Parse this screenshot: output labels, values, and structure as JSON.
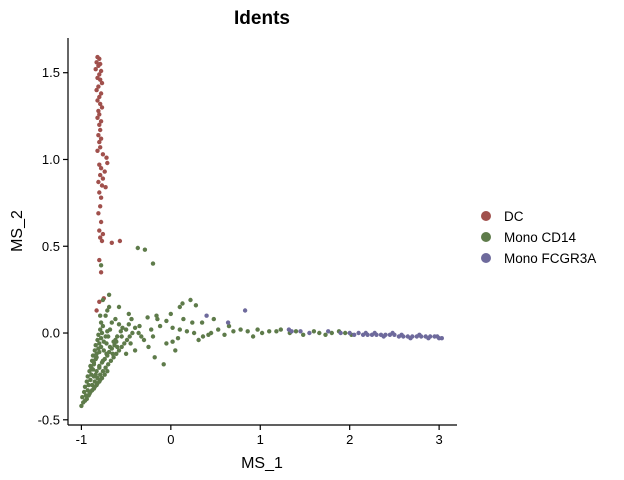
{
  "chart_data": {
    "type": "scatter",
    "title": "Idents",
    "xlabel": "MS_1",
    "ylabel": "MS_2",
    "xlim": [
      -1.15,
      3.2
    ],
    "ylim": [
      -0.53,
      1.7
    ],
    "xticks": [
      -1,
      0,
      1,
      2,
      3
    ],
    "xtick_labels": [
      "-1",
      "0",
      "1",
      "2",
      "3"
    ],
    "yticks": [
      -0.5,
      0.0,
      0.5,
      1.0,
      1.5
    ],
    "ytick_labels": [
      "-0.5",
      "0.0",
      "0.5",
      "1.0",
      "1.5"
    ],
    "grid": false,
    "legend_position": "right",
    "series": [
      {
        "name": "DC",
        "color": "#A0504C",
        "points": [
          [
            -0.82,
            1.59
          ],
          [
            -0.8,
            1.58
          ],
          [
            -0.83,
            1.56
          ],
          [
            -0.79,
            1.55
          ],
          [
            -0.81,
            1.54
          ],
          [
            -0.84,
            1.52
          ],
          [
            -0.78,
            1.51
          ],
          [
            -0.8,
            1.49
          ],
          [
            -0.82,
            1.47
          ],
          [
            -0.79,
            1.46
          ],
          [
            -0.77,
            1.44
          ],
          [
            -0.81,
            1.42
          ],
          [
            -0.83,
            1.4
          ],
          [
            -0.78,
            1.38
          ],
          [
            -0.8,
            1.36
          ],
          [
            -0.82,
            1.34
          ],
          [
            -0.79,
            1.32
          ],
          [
            -0.77,
            1.3
          ],
          [
            -0.81,
            1.28
          ],
          [
            -0.8,
            1.26
          ],
          [
            -0.82,
            1.24
          ],
          [
            -0.78,
            1.22
          ],
          [
            -0.8,
            1.2
          ],
          [
            -0.79,
            1.17
          ],
          [
            -0.81,
            1.14
          ],
          [
            -0.78,
            1.12
          ],
          [
            -0.8,
            1.1
          ],
          [
            -0.79,
            1.07
          ],
          [
            -0.82,
            1.05
          ],
          [
            -0.76,
            1.03
          ],
          [
            -0.72,
            1.01
          ],
          [
            -0.71,
            0.98
          ],
          [
            -0.8,
            0.97
          ],
          [
            -0.78,
            0.95
          ],
          [
            -0.74,
            0.93
          ],
          [
            -0.79,
            0.91
          ],
          [
            -0.76,
            0.89
          ],
          [
            -0.81,
            0.87
          ],
          [
            -0.77,
            0.85
          ],
          [
            -0.73,
            0.84
          ],
          [
            -0.8,
            0.81
          ],
          [
            -0.78,
            0.78
          ],
          [
            -0.79,
            0.73
          ],
          [
            -0.81,
            0.69
          ],
          [
            -0.78,
            0.64
          ],
          [
            -0.8,
            0.59
          ],
          [
            -0.76,
            0.57
          ],
          [
            -0.79,
            0.55
          ],
          [
            -0.77,
            0.53
          ],
          [
            -0.66,
            0.52
          ],
          [
            -0.57,
            0.53
          ],
          [
            -0.8,
            0.42
          ],
          [
            -0.78,
            0.35
          ],
          [
            -0.8,
            0.18
          ],
          [
            -0.75,
            0.2
          ],
          [
            -0.83,
            0.13
          ]
        ]
      },
      {
        "name": "Mono CD14",
        "color": "#5E7B4A",
        "points": [
          [
            -0.37,
            0.49
          ],
          [
            -0.29,
            0.48
          ],
          [
            -0.78,
            0.39
          ],
          [
            -0.2,
            0.4
          ],
          [
            -0.69,
            0.22
          ],
          [
            -0.76,
            0.19
          ],
          [
            -0.58,
            0.15
          ],
          [
            -0.47,
            0.11
          ],
          [
            -0.69,
            0.15
          ],
          [
            -0.79,
            0.1
          ],
          [
            -0.26,
            0.09
          ],
          [
            -0.15,
            0.08
          ],
          [
            -0.05,
            0.07
          ],
          [
            -0.35,
            0.04
          ],
          [
            -0.22,
            0.02
          ],
          [
            0.13,
            0.17
          ],
          [
            0.28,
            0.16
          ],
          [
            0.14,
            0.08
          ],
          [
            0.24,
            0.06
          ],
          [
            0.35,
            0.06
          ],
          [
            -0.12,
            0.04
          ],
          [
            0.02,
            0.03
          ],
          [
            0.1,
            0.02
          ],
          [
            0.18,
            0.01
          ],
          [
            0.26,
            0.0
          ],
          [
            0.42,
            -0.01
          ],
          [
            0.53,
            0.02
          ],
          [
            0.6,
            -0.01
          ],
          [
            0.7,
            0.01
          ],
          [
            0.78,
            0.02
          ],
          [
            0.86,
            0.01
          ],
          [
            0.92,
            -0.02
          ],
          [
            1.02,
            0.0
          ],
          [
            1.1,
            0.01
          ],
          [
            1.23,
            0.02
          ],
          [
            1.33,
            0.0
          ],
          [
            1.4,
            0.01
          ],
          [
            1.48,
            -0.01
          ],
          [
            1.6,
            0.01
          ],
          [
            1.66,
            0.0
          ],
          [
            1.73,
            -0.01
          ],
          [
            1.8,
            0.0
          ],
          [
            1.88,
            0.01
          ],
          [
            1.95,
            0.0
          ],
          [
            2.02,
            -0.01
          ],
          [
            -0.05,
            -0.06
          ],
          [
            0.05,
            -0.1
          ],
          [
            -0.25,
            -0.08
          ],
          [
            -0.3,
            -0.04
          ],
          [
            -0.4,
            -0.1
          ],
          [
            -0.45,
            -0.06
          ],
          [
            -0.5,
            -0.12
          ],
          [
            -0.55,
            -0.02
          ],
          [
            -0.6,
            -0.08
          ],
          [
            -0.62,
            -0.04
          ],
          [
            -0.65,
            -0.12
          ],
          [
            -0.18,
            -0.14
          ],
          [
            -0.08,
            -0.18
          ],
          [
            0.02,
            -0.05
          ],
          [
            0.08,
            -0.03
          ],
          [
            0.36,
            -0.02
          ],
          [
            0.45,
            0.0
          ],
          [
            0.31,
            -0.04
          ],
          [
            -0.2,
            -0.02
          ],
          [
            0.1,
            0.15
          ],
          [
            0.22,
            0.19
          ],
          [
            0.0,
            0.11
          ],
          [
            -0.16,
            0.1
          ],
          [
            0.48,
            0.08
          ],
          [
            0.65,
            0.04
          ],
          [
            0.97,
            0.02
          ],
          [
            1.18,
            0.01
          ],
          [
            -0.98,
            -0.4
          ],
          [
            -1.0,
            -0.42
          ],
          [
            -0.96,
            -0.39
          ],
          [
            -0.99,
            -0.37
          ],
          [
            -0.95,
            -0.36
          ],
          [
            -0.97,
            -0.34
          ],
          [
            -0.93,
            -0.33
          ],
          [
            -0.96,
            -0.31
          ],
          [
            -0.92,
            -0.3
          ],
          [
            -0.94,
            -0.28
          ],
          [
            -0.9,
            -0.27
          ],
          [
            -0.93,
            -0.25
          ],
          [
            -0.89,
            -0.24
          ],
          [
            -0.91,
            -0.22
          ],
          [
            -0.87,
            -0.21
          ],
          [
            -0.9,
            -0.19
          ],
          [
            -0.86,
            -0.18
          ],
          [
            -0.88,
            -0.16
          ],
          [
            -0.84,
            -0.15
          ],
          [
            -0.87,
            -0.13
          ],
          [
            -0.83,
            -0.12
          ],
          [
            -0.85,
            -0.1
          ],
          [
            -0.81,
            -0.09
          ],
          [
            -0.84,
            -0.07
          ],
          [
            -0.8,
            -0.06
          ],
          [
            -0.82,
            -0.04
          ],
          [
            -0.78,
            -0.03
          ],
          [
            -0.81,
            -0.01
          ],
          [
            -0.77,
            0.0
          ],
          [
            -0.79,
            0.02
          ],
          [
            -0.76,
            0.04
          ],
          [
            -0.78,
            0.06
          ],
          [
            -0.88,
            -0.3
          ],
          [
            -0.85,
            -0.28
          ],
          [
            -0.82,
            -0.26
          ],
          [
            -0.79,
            -0.24
          ],
          [
            -0.76,
            -0.22
          ],
          [
            -0.73,
            -0.2
          ],
          [
            -0.7,
            -0.18
          ],
          [
            -0.67,
            -0.16
          ],
          [
            -0.64,
            -0.14
          ],
          [
            -0.61,
            -0.12
          ],
          [
            -0.58,
            -0.1
          ],
          [
            -0.55,
            -0.08
          ],
          [
            -0.52,
            -0.06
          ],
          [
            -0.49,
            -0.04
          ],
          [
            -0.46,
            -0.02
          ],
          [
            -0.43,
            0.0
          ],
          [
            -0.84,
            -0.24
          ],
          [
            -0.8,
            -0.2
          ],
          [
            -0.76,
            -0.16
          ],
          [
            -0.72,
            -0.12
          ],
          [
            -0.68,
            -0.08
          ],
          [
            -0.64,
            -0.05
          ],
          [
            -0.6,
            -0.02
          ],
          [
            -0.56,
            0.01
          ],
          [
            -0.92,
            -0.36
          ],
          [
            -0.9,
            -0.34
          ],
          [
            -0.86,
            -0.32
          ],
          [
            -0.83,
            -0.3
          ],
          [
            -0.8,
            -0.28
          ],
          [
            -0.77,
            -0.26
          ],
          [
            -0.74,
            -0.24
          ],
          [
            -0.71,
            -0.22
          ],
          [
            -0.75,
            -0.1
          ],
          [
            -0.72,
            -0.06
          ],
          [
            -0.7,
            -0.02
          ],
          [
            -0.68,
            0.02
          ],
          [
            -0.66,
            0.06
          ],
          [
            -0.73,
            0.1
          ],
          [
            -0.71,
            0.13
          ],
          [
            -0.62,
            0.08
          ],
          [
            -0.58,
            0.05
          ],
          [
            -0.54,
            0.03
          ],
          [
            -0.5,
            0.02
          ],
          [
            -0.47,
            0.05
          ],
          [
            -0.44,
            0.08
          ],
          [
            -0.4,
            0.03
          ],
          [
            -0.36,
            0.0
          ],
          [
            -0.33,
            -0.02
          ],
          [
            -0.94,
            -0.38
          ],
          [
            -0.91,
            -0.35
          ],
          [
            -0.88,
            -0.33
          ],
          [
            -0.85,
            -0.31
          ],
          [
            -0.82,
            -0.29
          ],
          [
            -0.79,
            -0.27
          ],
          [
            -0.86,
            -0.25
          ],
          [
            -0.83,
            -0.22
          ],
          [
            -0.8,
            -0.19
          ],
          [
            -0.77,
            -0.17
          ],
          [
            -0.74,
            -0.15
          ],
          [
            -0.71,
            -0.13
          ],
          [
            -0.69,
            -0.11
          ],
          [
            -0.66,
            -0.09
          ],
          [
            -0.63,
            -0.07
          ],
          [
            -0.61,
            -0.05
          ],
          [
            -0.89,
            -0.2
          ],
          [
            -0.86,
            -0.17
          ],
          [
            -0.83,
            -0.14
          ],
          [
            -0.8,
            -0.11
          ],
          [
            -0.78,
            -0.08
          ],
          [
            -0.75,
            -0.05
          ],
          [
            -0.73,
            -0.02
          ],
          [
            -0.71,
            0.01
          ]
        ]
      },
      {
        "name": "Mono FCGR3A",
        "color": "#6E6A9C",
        "points": [
          [
            0.83,
            0.13
          ],
          [
            0.4,
            0.1
          ],
          [
            0.64,
            0.06
          ],
          [
            1.32,
            0.02
          ],
          [
            1.35,
            0.01
          ],
          [
            1.55,
            0.0
          ],
          [
            1.76,
            0.01
          ],
          [
            1.9,
            0.0
          ],
          [
            2.0,
            0.0
          ],
          [
            2.05,
            -0.01
          ],
          [
            2.1,
            0.0
          ],
          [
            2.15,
            -0.01
          ],
          [
            2.2,
            -0.01
          ],
          [
            2.25,
            -0.01
          ],
          [
            2.3,
            -0.01
          ],
          [
            2.35,
            -0.01
          ],
          [
            2.4,
            -0.01
          ],
          [
            2.45,
            -0.01
          ],
          [
            2.5,
            -0.01
          ],
          [
            2.55,
            -0.02
          ],
          [
            2.6,
            -0.02
          ],
          [
            2.65,
            -0.02
          ],
          [
            2.7,
            -0.02
          ],
          [
            2.75,
            -0.02
          ],
          [
            2.8,
            -0.02
          ],
          [
            2.85,
            -0.02
          ],
          [
            2.9,
            -0.02
          ],
          [
            2.95,
            -0.02
          ],
          [
            3.0,
            -0.03
          ],
          [
            3.03,
            -0.03
          ],
          [
            2.18,
            0.0
          ],
          [
            2.28,
            0.0
          ],
          [
            2.38,
            -0.02
          ],
          [
            2.48,
            0.0
          ],
          [
            2.58,
            -0.01
          ],
          [
            2.68,
            -0.03
          ],
          [
            2.78,
            -0.01
          ],
          [
            2.88,
            -0.03
          ],
          [
            2.98,
            -0.02
          ],
          [
            1.45,
            0.01
          ]
        ]
      }
    ]
  }
}
